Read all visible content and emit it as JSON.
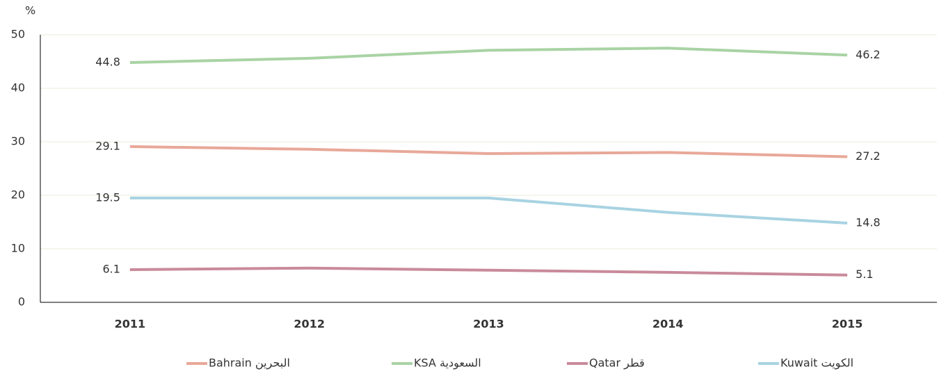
{
  "chart_data": {
    "type": "line",
    "y_label": "%",
    "categories": [
      "2011",
      "2012",
      "2013",
      "2014",
      "2015"
    ],
    "series": [
      {
        "name": "Bahrain  البحرين",
        "color": "#e8a899",
        "values": [
          29.1,
          28.6,
          27.8,
          28.0,
          27.2
        ]
      },
      {
        "name": "KSA السعودية",
        "color": "#a9d3a4",
        "values": [
          44.8,
          45.6,
          47.1,
          47.5,
          46.2
        ]
      },
      {
        "name": "Qatar قطر",
        "color": "#c98a9b",
        "values": [
          6.1,
          6.4,
          6.0,
          5.6,
          5.1
        ]
      },
      {
        "name": "Kuwait الكويت",
        "color": "#a8d3e2",
        "values": [
          19.5,
          19.5,
          19.5,
          16.8,
          14.8
        ]
      }
    ],
    "ylim": [
      0,
      50
    ],
    "yticks": [
      0,
      10,
      20,
      30,
      40,
      50
    ],
    "grid": true,
    "data_labels": "ends",
    "legend": "bottom"
  }
}
